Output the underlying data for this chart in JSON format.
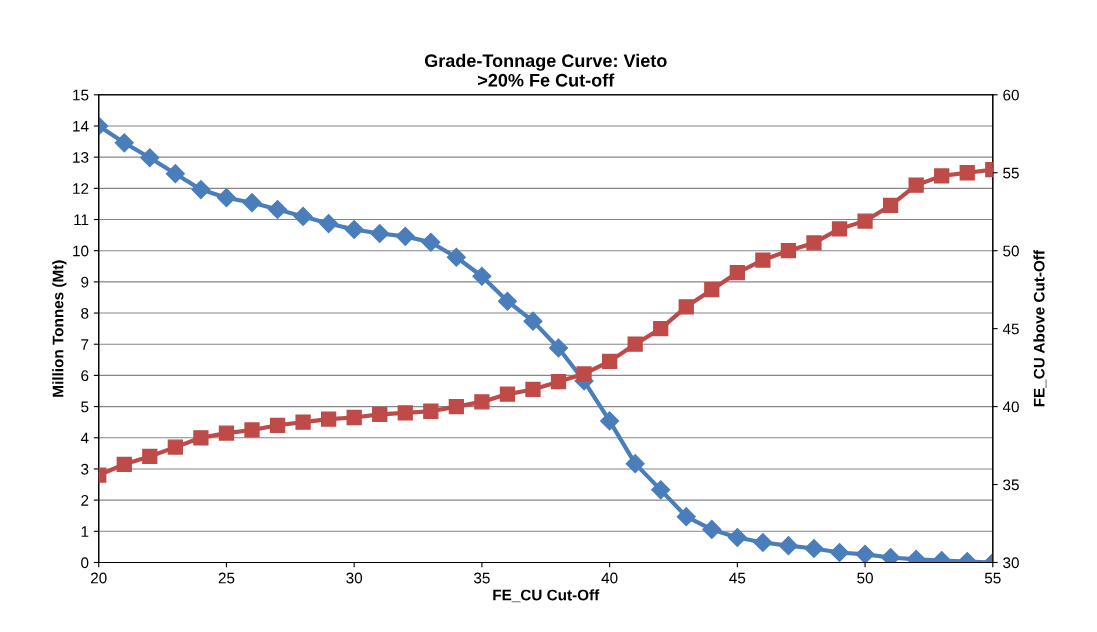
{
  "chart_data": {
    "type": "line",
    "title": "Grade-Tonnage Curve: Vieto\n>20% Fe Cut-off",
    "xlabel": "FE_CU Cut-Off",
    "ylabel": "Million Tonnes (Mt)",
    "y2label": "FE_CU Above Cut-Off",
    "x": [
      20,
      21,
      22,
      23,
      24,
      25,
      26,
      27,
      28,
      29,
      30,
      31,
      32,
      33,
      34,
      35,
      36,
      37,
      38,
      39,
      40,
      41,
      42,
      43,
      44,
      45,
      46,
      47,
      48,
      49,
      50,
      51,
      52,
      53,
      54,
      55
    ],
    "series": [
      {
        "color": "#4a7ebb",
        "marker": "diamond",
        "values": [
          14.0,
          13.46,
          12.98,
          12.47,
          11.96,
          11.7,
          11.54,
          11.32,
          11.1,
          10.87,
          10.68,
          10.55,
          10.46,
          10.27,
          9.79,
          9.18,
          8.38,
          7.74,
          6.88,
          5.82,
          4.54,
          3.17,
          2.33,
          1.47,
          1.06,
          0.8,
          0.64,
          0.54,
          0.45,
          0.32,
          0.26,
          0.16,
          0.1,
          0.06,
          0.03,
          0
        ]
      },
      {
        "color": "#be4b48",
        "marker": "square",
        "axis": "y2",
        "values": [
          35.6,
          36.3,
          36.8,
          37.4,
          38.0,
          38.3,
          38.5,
          38.8,
          39.0,
          39.2,
          39.3,
          39.5,
          39.6,
          39.7,
          40.0,
          40.3,
          40.8,
          41.1,
          41.6,
          42.1,
          42.9,
          44.0,
          45.0,
          46.4,
          47.5,
          48.6,
          49.4,
          50.0,
          50.5,
          51.4,
          51.9,
          52.9,
          54.2,
          54.8,
          55.0,
          55.2
        ]
      }
    ],
    "xlim": [
      20,
      55
    ],
    "xticks": [
      20,
      25,
      30,
      35,
      40,
      45,
      50,
      55
    ],
    "ylim": [
      0,
      15
    ],
    "yticks": [
      0,
      1,
      2,
      3,
      4,
      5,
      6,
      7,
      8,
      9,
      10,
      11,
      12,
      13,
      14,
      15
    ],
    "y2lim": [
      30,
      60
    ],
    "y2ticks": [
      30,
      35,
      40,
      45,
      50,
      55,
      60
    ],
    "grid": "y",
    "line_style": "solid"
  }
}
